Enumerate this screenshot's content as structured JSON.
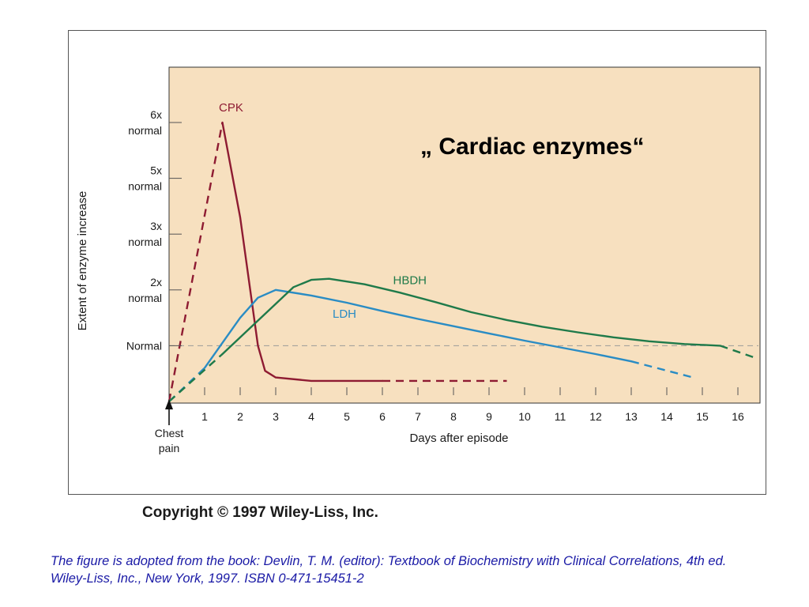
{
  "chart_data": {
    "type": "line",
    "title": "„ Cardiac enzymes“",
    "xlabel": "Days after episode",
    "ylabel": "Extent of enzyme increase",
    "x_origin_label": [
      "Chest",
      "pain"
    ],
    "xlim": [
      0,
      16.6
    ],
    "xticks": [
      1,
      2,
      3,
      4,
      5,
      6,
      7,
      8,
      9,
      10,
      11,
      12,
      13,
      14,
      15,
      16
    ],
    "ylim": [
      0,
      8
    ],
    "yticks": [
      {
        "value": 1,
        "lines": [
          "Normal"
        ]
      },
      {
        "value": 2,
        "lines": [
          "2x",
          "normal"
        ]
      },
      {
        "value": 3,
        "lines": [
          "3x",
          "normal"
        ]
      },
      {
        "value": 4,
        "lines": [
          "5x",
          "normal"
        ]
      },
      {
        "value": 5,
        "lines": [
          "6x",
          "normal"
        ]
      }
    ],
    "reference_line": {
      "y": 1,
      "style": "dashed"
    },
    "grid": false,
    "background": "#f7e0bf",
    "series": [
      {
        "name": "CPK",
        "color": "#8e1b32",
        "dashed_segments": [
          [
            [
              0,
              0
            ],
            [
              1.5,
              5
            ]
          ],
          [
            [
              6,
              0.37
            ],
            [
              9.5,
              0.37
            ]
          ]
        ],
        "solid": [
          [
            1.5,
            5
          ],
          [
            2.0,
            3.3
          ],
          [
            2.5,
            1.0
          ],
          [
            2.7,
            0.55
          ],
          [
            3.0,
            0.43
          ],
          [
            4.0,
            0.37
          ],
          [
            6.0,
            0.37
          ]
        ]
      },
      {
        "name": "LDH",
        "color": "#2a8cc4",
        "dashed_segments": [
          [
            [
              0,
              0
            ],
            [
              1.0,
              0.6
            ]
          ],
          [
            [
              13.0,
              0.72
            ],
            [
              14.8,
              0.42
            ]
          ]
        ],
        "solid": [
          [
            1.0,
            0.6
          ],
          [
            2.0,
            1.5
          ],
          [
            2.5,
            1.86
          ],
          [
            3.0,
            2.0
          ],
          [
            4.0,
            1.9
          ],
          [
            5.0,
            1.77
          ],
          [
            6.0,
            1.62
          ],
          [
            7.0,
            1.48
          ],
          [
            8.0,
            1.35
          ],
          [
            9.0,
            1.22
          ],
          [
            10.0,
            1.09
          ],
          [
            11.0,
            0.97
          ],
          [
            12.0,
            0.85
          ],
          [
            13.0,
            0.72
          ]
        ]
      },
      {
        "name": "HBDH",
        "color": "#1f7a4a",
        "dashed_segments": [
          [
            [
              0,
              0
            ],
            [
              1.5,
              0.85
            ]
          ],
          [
            [
              15.5,
              1.0
            ],
            [
              16.5,
              0.78
            ]
          ]
        ],
        "solid": [
          [
            1.5,
            0.85
          ],
          [
            2.5,
            1.45
          ],
          [
            3.5,
            2.05
          ],
          [
            4.0,
            2.18
          ],
          [
            4.5,
            2.2
          ],
          [
            5.5,
            2.1
          ],
          [
            6.5,
            1.95
          ],
          [
            7.5,
            1.78
          ],
          [
            8.5,
            1.6
          ],
          [
            9.5,
            1.46
          ],
          [
            10.5,
            1.34
          ],
          [
            11.5,
            1.24
          ],
          [
            12.5,
            1.15
          ],
          [
            13.5,
            1.08
          ],
          [
            14.5,
            1.03
          ],
          [
            15.5,
            1.0
          ]
        ]
      }
    ],
    "series_label_positions": [
      {
        "name": "CPK",
        "x": 1.4,
        "y": 5.2
      },
      {
        "name": "HBDH",
        "x": 6.3,
        "y": 2.1
      },
      {
        "name": "LDH",
        "x": 4.6,
        "y": 1.5
      }
    ]
  },
  "copyright": "Copyright © 1997 Wiley-Liss, Inc.",
  "source_note": "The figure is adopted from the book: Devlin, T. M. (editor): Textbook of Biochemistry with Clinical Correlations, 4th ed. Wiley-Liss, Inc., New York, 1997. ISBN 0-471-15451-2"
}
